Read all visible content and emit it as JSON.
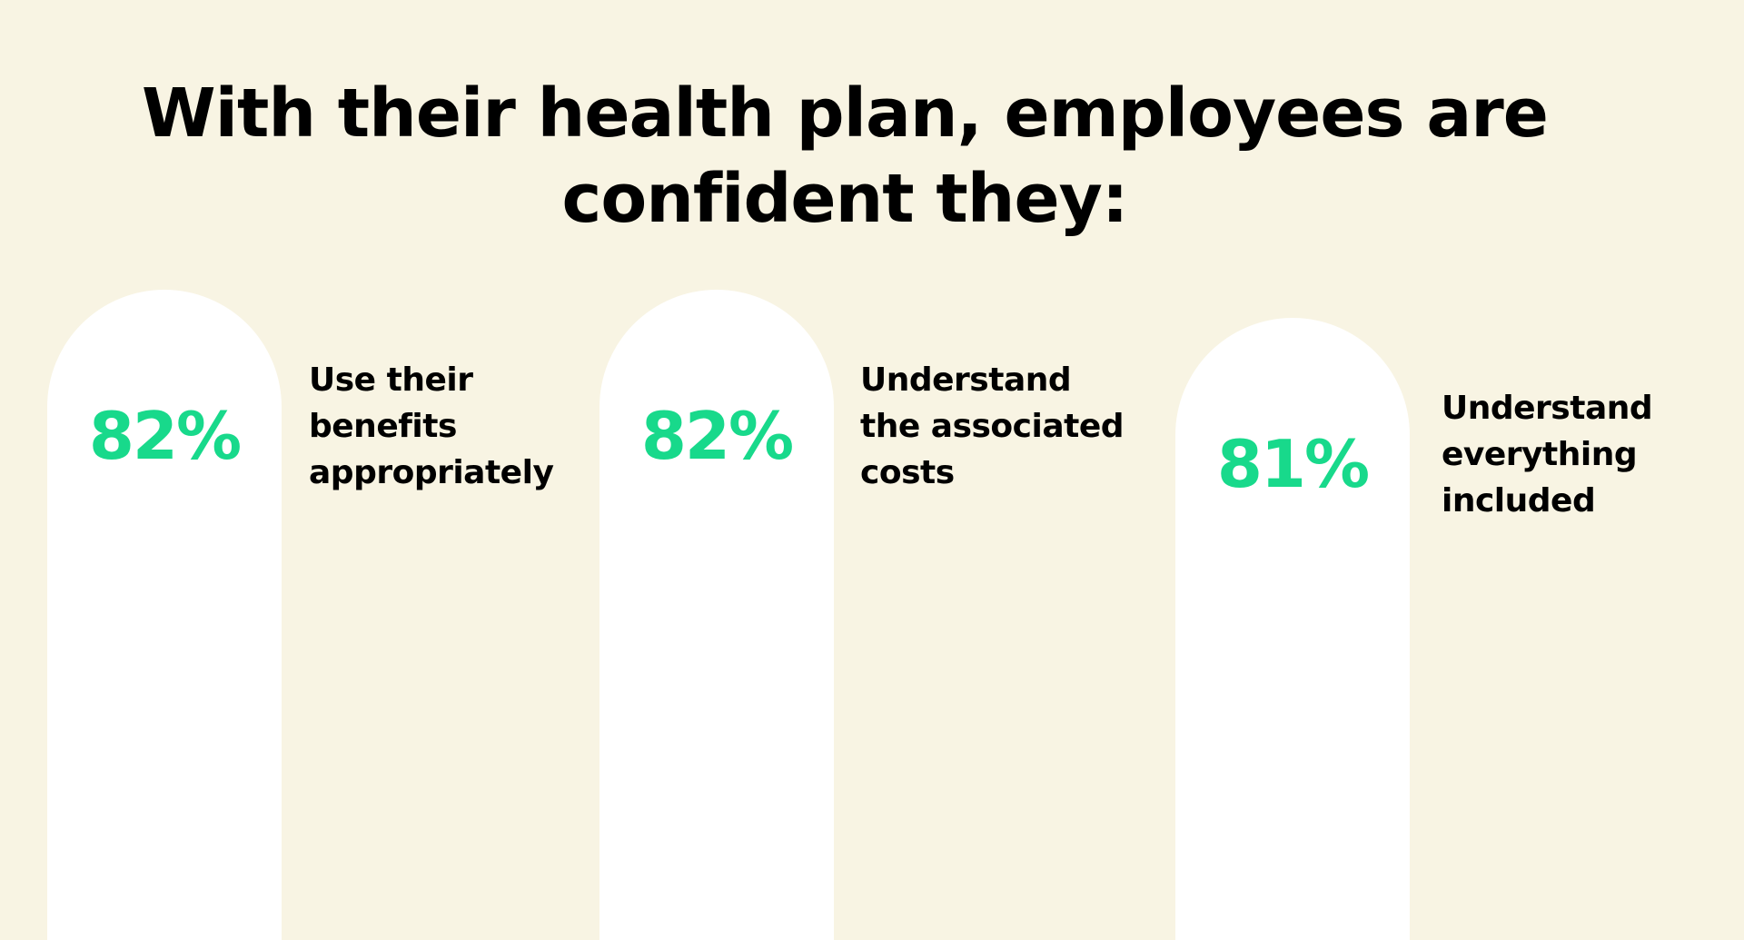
{
  "title": {
    "line1": "With their health plan, employees are",
    "line2": "confident they:"
  },
  "colors": {
    "background": "#F8F4E3",
    "pill": "#FFFFFF",
    "accent": "#18D98B",
    "text": "#000000"
  },
  "chart_data": {
    "type": "bar",
    "title": "With their health plan, employees are confident they:",
    "unit": "%",
    "categories": [
      "Use their benefits appropriately",
      "Understand the associated costs",
      "Understand everything included"
    ],
    "values": [
      82,
      82,
      81
    ],
    "value_labels": [
      "82%",
      "82%",
      "81%"
    ],
    "description_lines": [
      [
        "Use their",
        "benefits",
        "appropriately"
      ],
      [
        "Understand",
        "the associated",
        "costs"
      ],
      [
        "Understand",
        "everything",
        "included"
      ]
    ]
  }
}
